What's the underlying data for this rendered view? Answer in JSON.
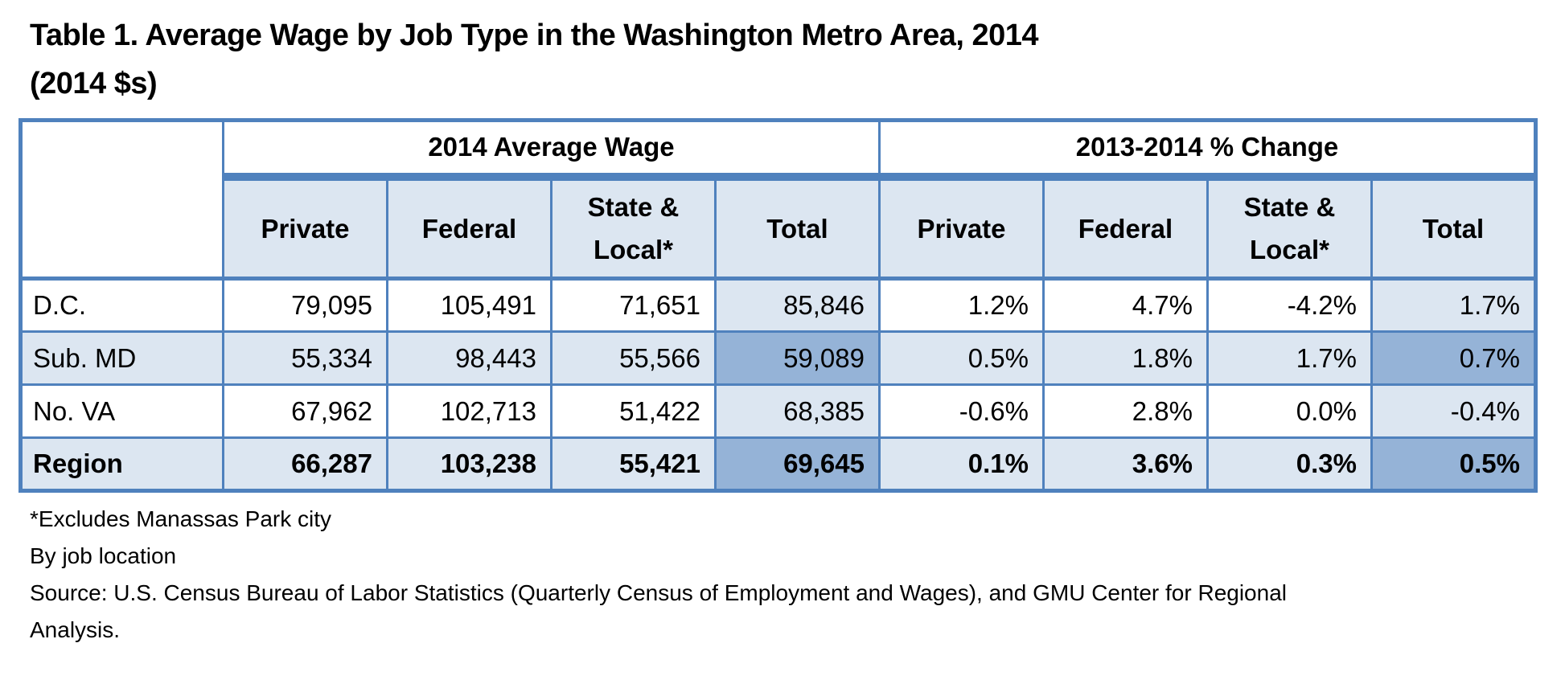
{
  "title": {
    "line1": "Table 1. Average Wage by Job Type in the Washington Metro Area, 2014",
    "line2": "(2014 $s)"
  },
  "table": {
    "group_headers": [
      "2014 Average Wage",
      "2013-2014 % Change"
    ],
    "column_headers": [
      "Private",
      "Federal",
      "State & Local*",
      "Total",
      "Private",
      "Federal",
      "State & Local*",
      "Total"
    ],
    "rows": [
      {
        "label": "D.C.",
        "values": [
          "79,095",
          "105,491",
          "71,651",
          "85,846",
          "1.2%",
          "4.7%",
          "-4.2%",
          "1.7%"
        ]
      },
      {
        "label": "Sub. MD",
        "values": [
          "55,334",
          "98,443",
          "55,566",
          "59,089",
          "0.5%",
          "1.8%",
          "1.7%",
          "0.7%"
        ]
      },
      {
        "label": "No. VA",
        "values": [
          "67,962",
          "102,713",
          "51,422",
          "68,385",
          "-0.6%",
          "2.8%",
          "0.0%",
          "-0.4%"
        ]
      },
      {
        "label": "Region",
        "values": [
          "66,287",
          "103,238",
          "55,421",
          "69,645",
          "0.1%",
          "3.6%",
          "0.3%",
          "0.5%"
        ]
      }
    ]
  },
  "footnotes": {
    "line1": "*Excludes Manassas Park city",
    "line2": "By job location",
    "line3": "Source: U.S. Census Bureau of Labor Statistics (Quarterly Census of Employment and Wages), and GMU Center for Regional",
    "line4": "Analysis."
  },
  "colors": {
    "border_blue": "#4F81BD",
    "light_fill": "#DCE6F1",
    "medium_fill": "#95B3D7",
    "text": "#000000"
  }
}
